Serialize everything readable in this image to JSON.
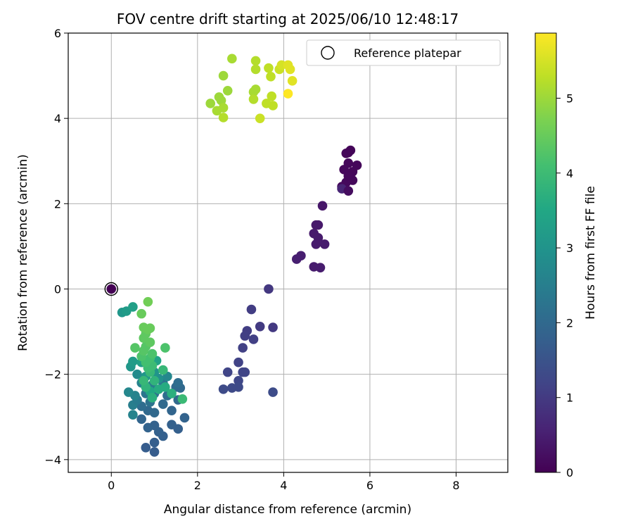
{
  "chart_data": {
    "type": "scatter",
    "title": "FOV centre drift starting at 2025/06/10 12:48:17",
    "xlabel": "Angular distance from reference (arcmin)",
    "ylabel": "Rotation from reference (arcmin)",
    "xlim": [
      -1.0,
      9.2
    ],
    "ylim": [
      -4.3,
      6.0
    ],
    "xticks": [
      "0",
      "2",
      "4",
      "6",
      "8"
    ],
    "yticks": [
      "−4",
      "−2",
      "0",
      "2",
      "4",
      "6"
    ],
    "grid": true,
    "legend": {
      "position": "top-right",
      "entries": [
        "Reference platepar"
      ]
    },
    "reference_point": {
      "x": 0,
      "y": 0
    },
    "colorbar": {
      "label": "Hours from first FF file",
      "range": [
        0,
        5.87
      ],
      "ticks": [
        "0",
        "1",
        "2",
        "3",
        "4",
        "5"
      ],
      "colormap": "viridis"
    },
    "points": [
      {
        "x": 0.0,
        "y": 0.0,
        "t": 0.0
      },
      {
        "x": 5.5,
        "y": 3.2,
        "t": 0.08
      },
      {
        "x": 5.45,
        "y": 3.18,
        "t": 0.09
      },
      {
        "x": 5.55,
        "y": 3.25,
        "t": 0.07
      },
      {
        "x": 5.7,
        "y": 2.9,
        "t": 0.1
      },
      {
        "x": 5.6,
        "y": 2.75,
        "t": 0.11
      },
      {
        "x": 5.5,
        "y": 2.95,
        "t": 0.1
      },
      {
        "x": 5.4,
        "y": 2.8,
        "t": 0.12
      },
      {
        "x": 5.55,
        "y": 2.6,
        "t": 0.13
      },
      {
        "x": 5.45,
        "y": 2.5,
        "t": 0.14
      },
      {
        "x": 5.35,
        "y": 2.4,
        "t": 0.15
      },
      {
        "x": 5.6,
        "y": 2.55,
        "t": 0.13
      },
      {
        "x": 5.5,
        "y": 2.65,
        "t": 0.12
      },
      {
        "x": 5.35,
        "y": 2.35,
        "t": 0.6
      },
      {
        "x": 5.5,
        "y": 2.3,
        "t": 0.2
      },
      {
        "x": 4.9,
        "y": 1.95,
        "t": 0.35
      },
      {
        "x": 4.75,
        "y": 1.5,
        "t": 0.4
      },
      {
        "x": 4.8,
        "y": 1.5,
        "t": 0.41
      },
      {
        "x": 4.7,
        "y": 1.3,
        "t": 0.42
      },
      {
        "x": 4.8,
        "y": 1.2,
        "t": 0.43
      },
      {
        "x": 4.75,
        "y": 1.05,
        "t": 0.44
      },
      {
        "x": 4.95,
        "y": 1.05,
        "t": 0.44
      },
      {
        "x": 4.3,
        "y": 0.7,
        "t": 0.5
      },
      {
        "x": 4.4,
        "y": 0.78,
        "t": 0.49
      },
      {
        "x": 4.7,
        "y": 0.52,
        "t": 0.45
      },
      {
        "x": 4.85,
        "y": 0.5,
        "t": 0.46
      },
      {
        "x": 3.65,
        "y": 0.0,
        "t": 0.95
      },
      {
        "x": 3.25,
        "y": -0.48,
        "t": 1.05
      },
      {
        "x": 3.75,
        "y": -0.9,
        "t": 0.98
      },
      {
        "x": 3.45,
        "y": -0.88,
        "t": 1.0
      },
      {
        "x": 3.15,
        "y": -0.98,
        "t": 1.05
      },
      {
        "x": 3.1,
        "y": -1.1,
        "t": 1.08
      },
      {
        "x": 3.3,
        "y": -1.18,
        "t": 1.1
      },
      {
        "x": 3.05,
        "y": -1.38,
        "t": 1.12
      },
      {
        "x": 2.95,
        "y": -1.72,
        "t": 1.15
      },
      {
        "x": 2.7,
        "y": -1.95,
        "t": 1.2
      },
      {
        "x": 3.05,
        "y": -1.95,
        "t": 1.22
      },
      {
        "x": 3.1,
        "y": -1.95,
        "t": 1.2
      },
      {
        "x": 2.95,
        "y": -2.15,
        "t": 1.25
      },
      {
        "x": 2.95,
        "y": -2.3,
        "t": 1.3
      },
      {
        "x": 2.8,
        "y": -2.32,
        "t": 1.3
      },
      {
        "x": 2.6,
        "y": -2.35,
        "t": 1.32
      },
      {
        "x": 3.75,
        "y": -2.42,
        "t": 1.35
      },
      {
        "x": 1.0,
        "y": -3.82,
        "t": 1.7
      },
      {
        "x": 0.8,
        "y": -3.72,
        "t": 1.72
      },
      {
        "x": 1.0,
        "y": -3.6,
        "t": 1.75
      },
      {
        "x": 1.2,
        "y": -3.45,
        "t": 1.78
      },
      {
        "x": 1.1,
        "y": -3.35,
        "t": 1.8
      },
      {
        "x": 1.0,
        "y": -3.2,
        "t": 1.82
      },
      {
        "x": 1.4,
        "y": -3.18,
        "t": 1.8
      },
      {
        "x": 1.55,
        "y": -3.28,
        "t": 1.78
      },
      {
        "x": 0.85,
        "y": -3.25,
        "t": 1.85
      },
      {
        "x": 1.7,
        "y": -3.02,
        "t": 1.85
      },
      {
        "x": 0.7,
        "y": -3.05,
        "t": 1.9
      },
      {
        "x": 0.5,
        "y": -2.95,
        "t": 2.6
      },
      {
        "x": 1.4,
        "y": -2.85,
        "t": 1.9
      },
      {
        "x": 0.85,
        "y": -2.85,
        "t": 2.0
      },
      {
        "x": 1.0,
        "y": -2.9,
        "t": 2.0
      },
      {
        "x": 0.7,
        "y": -2.75,
        "t": 2.1
      },
      {
        "x": 0.5,
        "y": -2.72,
        "t": 2.5
      },
      {
        "x": 1.2,
        "y": -2.7,
        "t": 2.0
      },
      {
        "x": 1.55,
        "y": -2.6,
        "t": 2.0
      },
      {
        "x": 0.9,
        "y": -2.65,
        "t": 2.2
      },
      {
        "x": 0.6,
        "y": -2.6,
        "t": 2.4
      },
      {
        "x": 1.3,
        "y": -2.5,
        "t": 2.1
      },
      {
        "x": 1.0,
        "y": -2.45,
        "t": 2.2
      },
      {
        "x": 0.8,
        "y": -2.45,
        "t": 2.3
      },
      {
        "x": 0.55,
        "y": -2.5,
        "t": 2.6
      },
      {
        "x": 0.4,
        "y": -2.42,
        "t": 2.7
      },
      {
        "x": 1.5,
        "y": -2.3,
        "t": 2.0
      },
      {
        "x": 1.6,
        "y": -2.32,
        "t": 2.0
      },
      {
        "x": 1.2,
        "y": -2.2,
        "t": 2.3
      },
      {
        "x": 0.95,
        "y": -2.25,
        "t": 2.5
      },
      {
        "x": 0.7,
        "y": -2.2,
        "t": 2.6
      },
      {
        "x": 1.55,
        "y": -2.2,
        "t": 2.1
      },
      {
        "x": 1.3,
        "y": -2.05,
        "t": 2.7
      },
      {
        "x": 0.6,
        "y": -2.0,
        "t": 2.8
      },
      {
        "x": 1.1,
        "y": -2.1,
        "t": 2.9
      },
      {
        "x": 1.0,
        "y": -1.95,
        "t": 3.0
      },
      {
        "x": 0.8,
        "y": -2.05,
        "t": 3.1
      },
      {
        "x": 0.45,
        "y": -1.82,
        "t": 3.1
      },
      {
        "x": 0.5,
        "y": -1.7,
        "t": 3.2
      },
      {
        "x": 0.7,
        "y": -1.72,
        "t": 3.3
      },
      {
        "x": 1.05,
        "y": -1.68,
        "t": 3.4
      },
      {
        "x": 0.25,
        "y": -0.55,
        "t": 3.1
      },
      {
        "x": 0.35,
        "y": -0.52,
        "t": 3.2
      },
      {
        "x": 0.5,
        "y": -0.42,
        "t": 3.3
      },
      {
        "x": 0.9,
        "y": -2.4,
        "t": 3.5
      },
      {
        "x": 1.1,
        "y": -2.35,
        "t": 3.6
      },
      {
        "x": 1.25,
        "y": -2.3,
        "t": 3.6
      },
      {
        "x": 1.4,
        "y": -2.45,
        "t": 3.7
      },
      {
        "x": 0.95,
        "y": -2.55,
        "t": 3.7
      },
      {
        "x": 1.65,
        "y": -2.58,
        "t": 3.95
      },
      {
        "x": 0.8,
        "y": -2.3,
        "t": 3.8
      },
      {
        "x": 1.0,
        "y": -2.15,
        "t": 3.8
      },
      {
        "x": 0.75,
        "y": -2.15,
        "t": 3.9
      },
      {
        "x": 0.9,
        "y": -1.95,
        "t": 3.9
      },
      {
        "x": 1.2,
        "y": -1.9,
        "t": 3.9
      },
      {
        "x": 0.85,
        "y": -1.85,
        "t": 4.0
      },
      {
        "x": 0.95,
        "y": -1.8,
        "t": 4.0
      },
      {
        "x": 0.8,
        "y": -1.72,
        "t": 4.1
      },
      {
        "x": 0.9,
        "y": -1.62,
        "t": 4.1
      },
      {
        "x": 0.95,
        "y": -1.52,
        "t": 4.2
      },
      {
        "x": 0.7,
        "y": -1.58,
        "t": 4.2
      },
      {
        "x": 0.75,
        "y": -1.45,
        "t": 4.3
      },
      {
        "x": 0.55,
        "y": -1.38,
        "t": 4.3
      },
      {
        "x": 0.8,
        "y": -1.35,
        "t": 4.3
      },
      {
        "x": 1.25,
        "y": -1.38,
        "t": 4.2
      },
      {
        "x": 0.9,
        "y": -1.25,
        "t": 4.4
      },
      {
        "x": 0.75,
        "y": -1.15,
        "t": 4.4
      },
      {
        "x": 0.8,
        "y": -1.05,
        "t": 4.4
      },
      {
        "x": 0.85,
        "y": -0.95,
        "t": 4.5
      },
      {
        "x": 0.75,
        "y": -0.9,
        "t": 4.5
      },
      {
        "x": 0.9,
        "y": -0.92,
        "t": 4.5
      },
      {
        "x": 0.7,
        "y": -0.58,
        "t": 4.5
      },
      {
        "x": 0.85,
        "y": -0.3,
        "t": 4.6
      },
      {
        "x": 2.8,
        "y": 5.4,
        "t": 5.1
      },
      {
        "x": 3.35,
        "y": 5.35,
        "t": 5.2
      },
      {
        "x": 3.35,
        "y": 5.15,
        "t": 5.2
      },
      {
        "x": 2.6,
        "y": 5.0,
        "t": 5.0
      },
      {
        "x": 3.65,
        "y": 5.18,
        "t": 5.3
      },
      {
        "x": 3.7,
        "y": 4.98,
        "t": 5.3
      },
      {
        "x": 3.9,
        "y": 5.15,
        "t": 5.4
      },
      {
        "x": 3.95,
        "y": 5.25,
        "t": 5.5
      },
      {
        "x": 4.1,
        "y": 5.25,
        "t": 5.6
      },
      {
        "x": 4.15,
        "y": 5.15,
        "t": 5.6
      },
      {
        "x": 4.2,
        "y": 4.88,
        "t": 5.6
      },
      {
        "x": 4.1,
        "y": 4.58,
        "t": 5.87
      },
      {
        "x": 2.7,
        "y": 4.65,
        "t": 5.0
      },
      {
        "x": 3.3,
        "y": 4.62,
        "t": 5.1
      },
      {
        "x": 3.35,
        "y": 4.68,
        "t": 5.1
      },
      {
        "x": 3.3,
        "y": 4.45,
        "t": 5.2
      },
      {
        "x": 3.72,
        "y": 4.52,
        "t": 5.3
      },
      {
        "x": 2.5,
        "y": 4.5,
        "t": 5.0
      },
      {
        "x": 2.55,
        "y": 4.42,
        "t": 5.0
      },
      {
        "x": 2.3,
        "y": 4.35,
        "t": 5.0
      },
      {
        "x": 2.6,
        "y": 4.25,
        "t": 5.1
      },
      {
        "x": 2.45,
        "y": 4.18,
        "t": 5.1
      },
      {
        "x": 2.6,
        "y": 4.02,
        "t": 5.2
      },
      {
        "x": 3.6,
        "y": 4.35,
        "t": 5.3
      },
      {
        "x": 3.75,
        "y": 4.3,
        "t": 5.3
      },
      {
        "x": 3.45,
        "y": 4.0,
        "t": 5.4
      }
    ]
  }
}
